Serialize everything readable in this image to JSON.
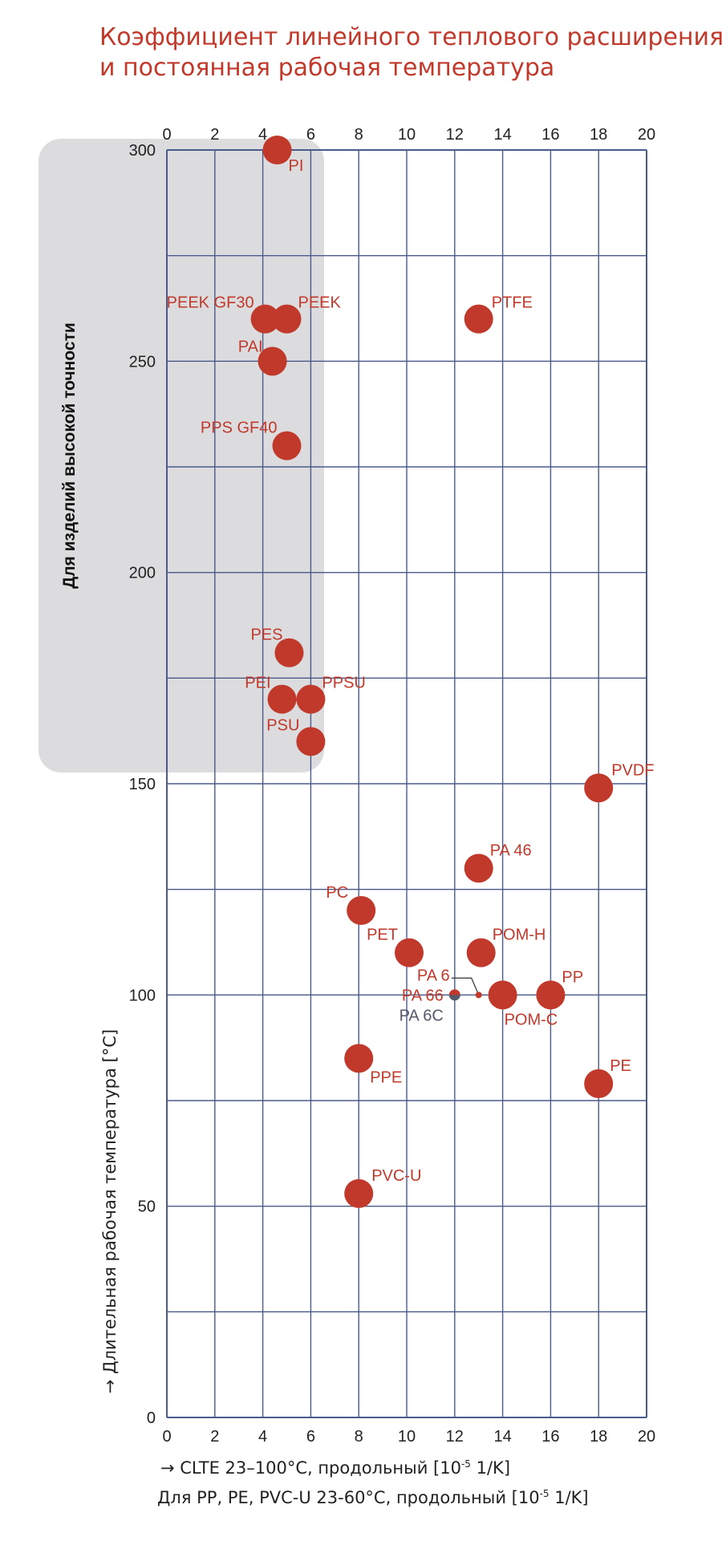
{
  "title_line1": "Коэффициент линейного теплового расширения",
  "title_line2": "и постоянная рабочая температура",
  "colors": {
    "accent": "#c0392b",
    "grid": "#4a5a8a",
    "band": "#dcdcde",
    "gray_point": "#555a6a"
  },
  "band_label": "Для изделий высокой точности",
  "xlabel_line1_prefix": "→ CLTE 23–100°C, продольный [10",
  "xlabel_line1_sup": "-5",
  "xlabel_line1_suffix": " 1/K]",
  "xlabel_line2_prefix": "Для PP, PE, PVC-U 23-60°C, продольный [10",
  "xlabel_line2_sup": "-5",
  "xlabel_line2_suffix": " 1/K]",
  "chart_data": {
    "type": "scatter",
    "title": "Коэффициент линейного теплового расширения и постоянная рабочая температура",
    "xlabel": "→ CLTE 23–100°C, продольный [10-5 1/K]; Для PP, PE, PVC-U 23-60°C, продольный [10-5 1/K]",
    "ylabel": "→ Длительная рабочая температура [°C]",
    "xlim": [
      0,
      20
    ],
    "ylim": [
      0,
      300
    ],
    "x_ticks": [
      0,
      2,
      4,
      6,
      8,
      10,
      12,
      14,
      16,
      18,
      20
    ],
    "y_ticks": [
      0,
      50,
      100,
      150,
      200,
      250,
      300
    ],
    "grid": true,
    "highlight_band": {
      "label": "Для изделий высокой точности",
      "x_range": [
        0,
        6
      ],
      "y_range": [
        150,
        300
      ]
    },
    "points": [
      {
        "name": "PI",
        "x": 4.6,
        "y": 300
      },
      {
        "name": "PEEK GF30",
        "x": 4.1,
        "y": 260
      },
      {
        "name": "PEEK",
        "x": 5.0,
        "y": 260
      },
      {
        "name": "PTFE",
        "x": 13.0,
        "y": 260
      },
      {
        "name": "PAI",
        "x": 4.4,
        "y": 250
      },
      {
        "name": "PPS GF40",
        "x": 5.0,
        "y": 230
      },
      {
        "name": "PES",
        "x": 5.1,
        "y": 181
      },
      {
        "name": "PEI",
        "x": 4.8,
        "y": 170
      },
      {
        "name": "PPSU",
        "x": 6.0,
        "y": 170
      },
      {
        "name": "PSU",
        "x": 6.0,
        "y": 160
      },
      {
        "name": "PVDF",
        "x": 18.0,
        "y": 149
      },
      {
        "name": "PA 46",
        "x": 13.0,
        "y": 130
      },
      {
        "name": "PC",
        "x": 8.1,
        "y": 120
      },
      {
        "name": "PET",
        "x": 10.1,
        "y": 110
      },
      {
        "name": "POM-H",
        "x": 13.1,
        "y": 110
      },
      {
        "name": "PA 6",
        "x": 13.0,
        "y": 100
      },
      {
        "name": "PA 66",
        "x": 12.0,
        "y": 100
      },
      {
        "name": "PA 6C",
        "x": 12.0,
        "y": 100
      },
      {
        "name": "POM-C",
        "x": 14.0,
        "y": 100
      },
      {
        "name": "PP",
        "x": 16.0,
        "y": 100
      },
      {
        "name": "PPE",
        "x": 8.0,
        "y": 85
      },
      {
        "name": "PE",
        "x": 18.0,
        "y": 79
      },
      {
        "name": "PVC-U",
        "x": 8.0,
        "y": 53
      }
    ]
  }
}
